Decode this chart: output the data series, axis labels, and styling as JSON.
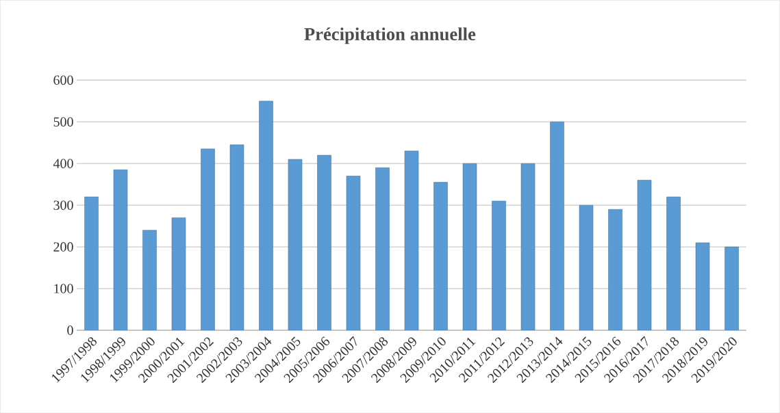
{
  "chart_data": {
    "type": "bar",
    "title": "Précipitation annuelle",
    "categories": [
      "1997/1998",
      "1998/1999",
      "1999/2000",
      "2000/2001",
      "2001/2002",
      "2002/2003",
      "2003/2004",
      "2004/2005",
      "2005/2006",
      "2006/2007",
      "2007/2008",
      "2008/2009",
      "2009/2010",
      "2010/2011",
      "2011/2012",
      "2012/2013",
      "2013/2014",
      "2014/2015",
      "2015/2016",
      "2016/2017",
      "2017/2018",
      "2018/2019",
      "2019/2020"
    ],
    "values": [
      320,
      385,
      240,
      270,
      435,
      445,
      550,
      410,
      420,
      370,
      390,
      430,
      355,
      400,
      310,
      400,
      500,
      300,
      290,
      360,
      320,
      210,
      200
    ],
    "color": "#5b9bd5",
    "ylim": [
      0,
      600
    ],
    "yticks": [
      0,
      100,
      200,
      300,
      400,
      500,
      600
    ],
    "grid": "y"
  }
}
